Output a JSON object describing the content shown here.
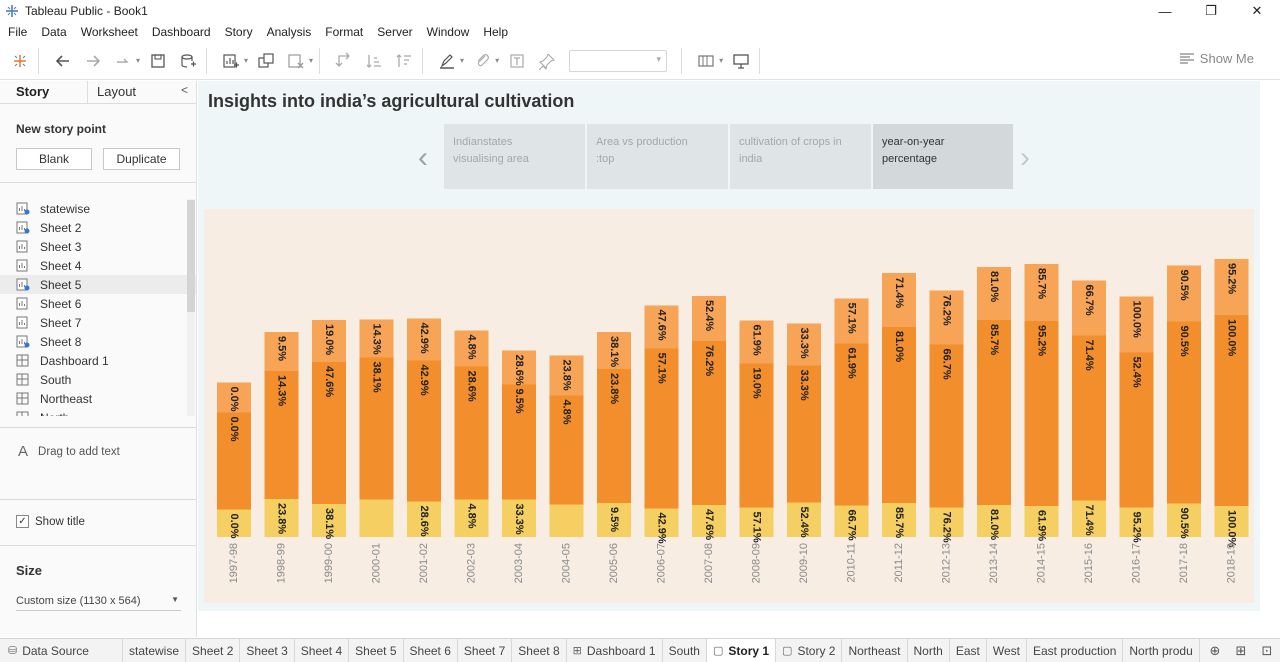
{
  "window": {
    "title": "Tableau Public - Book1"
  },
  "menu": [
    "File",
    "Data",
    "Worksheet",
    "Dashboard",
    "Story",
    "Analysis",
    "Format",
    "Server",
    "Window",
    "Help"
  ],
  "toolbar": {
    "show_me": "Show Me"
  },
  "left_panel": {
    "tabs": {
      "story": "Story",
      "layout": "Layout"
    },
    "new_story_point": "New story point",
    "blank": "Blank",
    "duplicate": "Duplicate",
    "sheets": [
      {
        "label": "statewise",
        "type": "sheet-used"
      },
      {
        "label": "Sheet 2",
        "type": "sheet-used"
      },
      {
        "label": "Sheet 3",
        "type": "sheet"
      },
      {
        "label": "Sheet 4",
        "type": "sheet"
      },
      {
        "label": "Sheet 5",
        "type": "sheet-used"
      },
      {
        "label": "Sheet 6",
        "type": "sheet"
      },
      {
        "label": "Sheet 7",
        "type": "sheet"
      },
      {
        "label": "Sheet 8",
        "type": "sheet-used"
      },
      {
        "label": "Dashboard 1",
        "type": "dashboard"
      },
      {
        "label": "South",
        "type": "dashboard"
      },
      {
        "label": "Northeast",
        "type": "dashboard"
      },
      {
        "label": "North",
        "type": "dashboard"
      }
    ],
    "drag_text": "Drag to add text",
    "show_title": "Show title",
    "size_heading": "Size",
    "size_value": "Custom size (1130 x 564)"
  },
  "story": {
    "title": "Insights into india’s agricultural cultivation",
    "points": [
      {
        "line1": "Indianstates",
        "line2": "visualising area"
      },
      {
        "line1": "Area vs production",
        "line2": ":top"
      },
      {
        "line1": "cultivation of crops in",
        "line2": "india"
      },
      {
        "line1": "year-on-year",
        "line2": "percentage"
      }
    ]
  },
  "colors": {
    "top": "#f7a456",
    "middle": "#f28e2c",
    "bottom": "#f5cf62",
    "background": "#f7ede2"
  },
  "chart_data": {
    "type": "bar",
    "stacked": true,
    "categories": [
      "1997-98",
      "1998-99",
      "1999-00",
      "2000-01",
      "2001-02",
      "2002-03",
      "2003-04",
      "2004-05",
      "2005-06",
      "2006-07",
      "2007-08",
      "2008-09",
      "2009-10",
      "2010-11",
      "2011-12",
      "2012-13",
      "2013-14",
      "2014-15",
      "2015-16",
      "2016-17",
      "2017-18",
      "2018-19"
    ],
    "series": [
      {
        "values": [
          27.5,
          38.0,
          33.0,
          37.5,
          35.5,
          37.5,
          37.5,
          32.5,
          34.0,
          28.5,
          32.0,
          29.5,
          34.5,
          31.5,
          34.0,
          29.5,
          32.0,
          31.0,
          36.5,
          29.5,
          33.5,
          31.0
        ],
        "labels": [
          "0.0%",
          "23.8%",
          "38.1%",
          "",
          "28.6%",
          "4.8%",
          "33.3%",
          "",
          "9.5%",
          "42.9%",
          "47.6%",
          "57.1%",
          "52.4%",
          "66.7%",
          "85.7%",
          "76.2%",
          "81.0%",
          "61.9%",
          "71.4%",
          "95.2%",
          "90.5%",
          "100.0%"
        ]
      },
      {
        "values": [
          97.0,
          128.0,
          142.0,
          142.0,
          141.0,
          133.0,
          115.0,
          109.0,
          134.0,
          160.0,
          164.0,
          144.0,
          137.0,
          162.0,
          176.0,
          163.0,
          185.0,
          185.0,
          165.0,
          155.0,
          182.0,
          191.0
        ],
        "labels": [
          "0.0%",
          "14.3%",
          "47.6%",
          "38.1%",
          "42.9%",
          "28.6%",
          "9.5%",
          "4.8%",
          "23.8%",
          "57.1%",
          "76.2%",
          "19.0%",
          "33.3%",
          "61.9%",
          "81.0%",
          "66.7%",
          "85.7%",
          "95.2%",
          "71.4%",
          "52.4%",
          "90.5%",
          "100.0%"
        ]
      },
      {
        "values": [
          30.0,
          39.0,
          42.0,
          38.0,
          42.0,
          36.0,
          34.0,
          40.0,
          37.0,
          43.0,
          45.0,
          43.0,
          42.0,
          45.0,
          54.0,
          54.0,
          53.0,
          57.0,
          55.0,
          56.0,
          56.0,
          56.0
        ],
        "labels": [
          "0.0%",
          "9.5%",
          "19.0%",
          "14.3%",
          "42.9%",
          "4.8%",
          "28.6%",
          "23.8%",
          "38.1%",
          "47.6%",
          "52.4%",
          "61.9%",
          "33.3%",
          "57.1%",
          "71.4%",
          "76.2%",
          "81.0%",
          "85.7%",
          "66.7%",
          "100.0%",
          "90.5%",
          "95.2%"
        ]
      }
    ],
    "ylim": [
      0,
      300
    ]
  }
}
